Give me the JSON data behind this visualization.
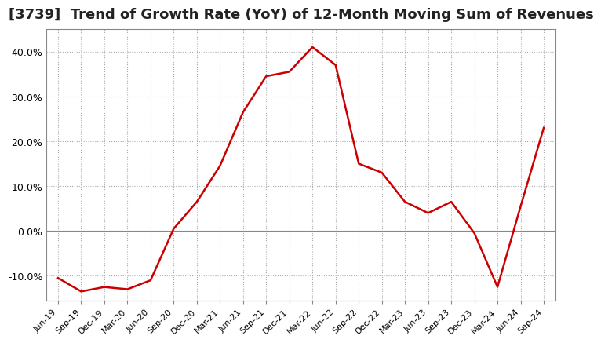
{
  "title": "[3739]  Trend of Growth Rate (YoY) of 12-Month Moving Sum of Revenues",
  "title_fontsize": 13,
  "line_color": "#cc0000",
  "background_color": "#ffffff",
  "ylim": [
    -0.155,
    0.45
  ],
  "yticks": [
    -0.1,
    0.0,
    0.1,
    0.2,
    0.3,
    0.4
  ],
  "x_labels": [
    "Jun-19",
    "Sep-19",
    "Dec-19",
    "Mar-20",
    "Jun-20",
    "Sep-20",
    "Dec-20",
    "Mar-21",
    "Jun-21",
    "Sep-21",
    "Dec-21",
    "Mar-22",
    "Jun-22",
    "Sep-22",
    "Dec-22",
    "Mar-23",
    "Jun-23",
    "Sep-23",
    "Dec-23",
    "Mar-24",
    "Jun-24",
    "Sep-24"
  ],
  "y_values": [
    -0.105,
    -0.135,
    -0.125,
    -0.13,
    -0.11,
    0.005,
    0.065,
    0.145,
    0.265,
    0.345,
    0.355,
    0.41,
    0.37,
    0.15,
    0.13,
    0.065,
    0.04,
    0.065,
    -0.005,
    -0.125,
    0.055,
    0.23
  ]
}
